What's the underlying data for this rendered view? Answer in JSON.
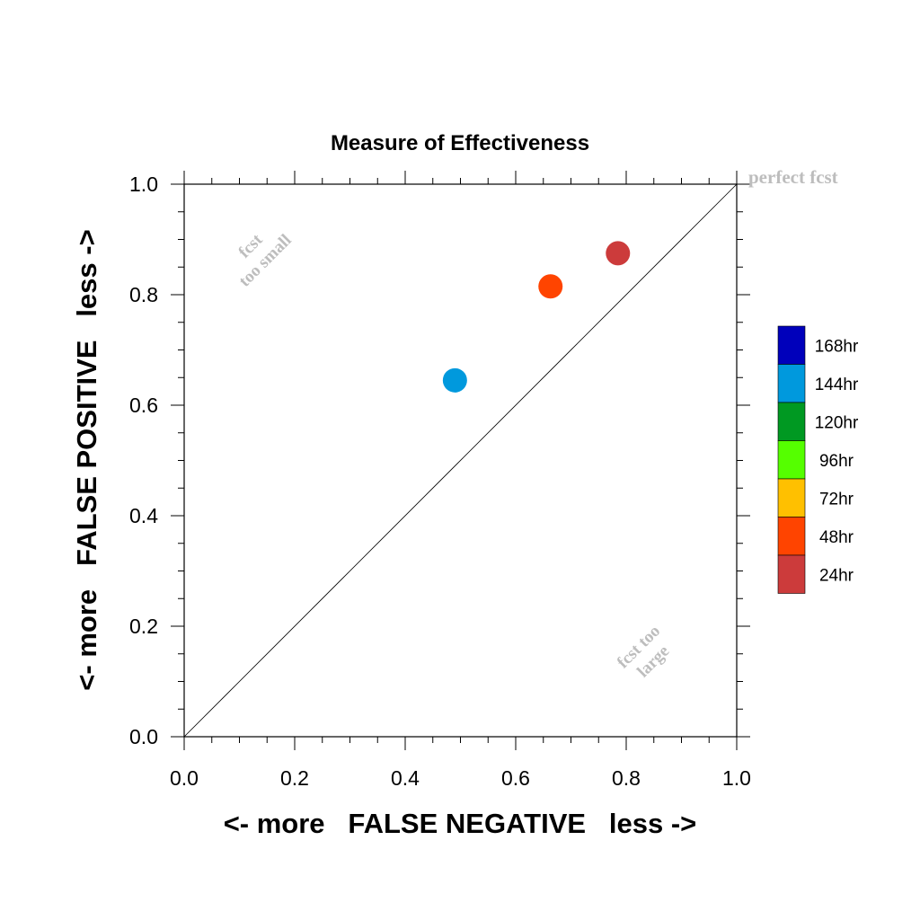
{
  "chart_data": {
    "type": "scatter",
    "title": "Measure of Effectiveness",
    "xlabel": "<- more   FALSE NEGATIVE   less ->",
    "ylabel": "<- more   FALSE POSITIVE   less ->",
    "xlim": [
      0,
      1
    ],
    "ylim": [
      0,
      1
    ],
    "x_ticks": [
      "0.0",
      "0.2",
      "0.4",
      "0.6",
      "0.8",
      "1.0"
    ],
    "y_ticks": [
      "0.0",
      "0.2",
      "0.4",
      "0.6",
      "0.8",
      "1.0"
    ],
    "grid": false,
    "reference_line": {
      "from": [
        0,
        0
      ],
      "to": [
        1,
        1
      ]
    },
    "annotations": {
      "perfect": "perfect fcst",
      "too_small_1": "fcst",
      "too_small_2": "too small",
      "too_large_1": "fcst too",
      "too_large_2": "large"
    },
    "points": [
      {
        "x": 0.49,
        "y": 0.645,
        "color": "#0099dd",
        "lead": "144hr"
      },
      {
        "x": 0.663,
        "y": 0.815,
        "color": "#ff4400",
        "lead": "48hr"
      },
      {
        "x": 0.785,
        "y": 0.875,
        "color": "#cc3b3b",
        "lead": "24hr"
      }
    ],
    "legend": {
      "position": "right",
      "items": [
        {
          "label": "168hr",
          "color": "#0000bb"
        },
        {
          "label": "144hr",
          "color": "#0099dd"
        },
        {
          "label": "120hr",
          "color": "#009922"
        },
        {
          "label": "96hr",
          "color": "#55ff00"
        },
        {
          "label": "72hr",
          "color": "#ffc000"
        },
        {
          "label": "48hr",
          "color": "#ff4400"
        },
        {
          "label": "24hr",
          "color": "#cc3b3b"
        }
      ]
    }
  }
}
